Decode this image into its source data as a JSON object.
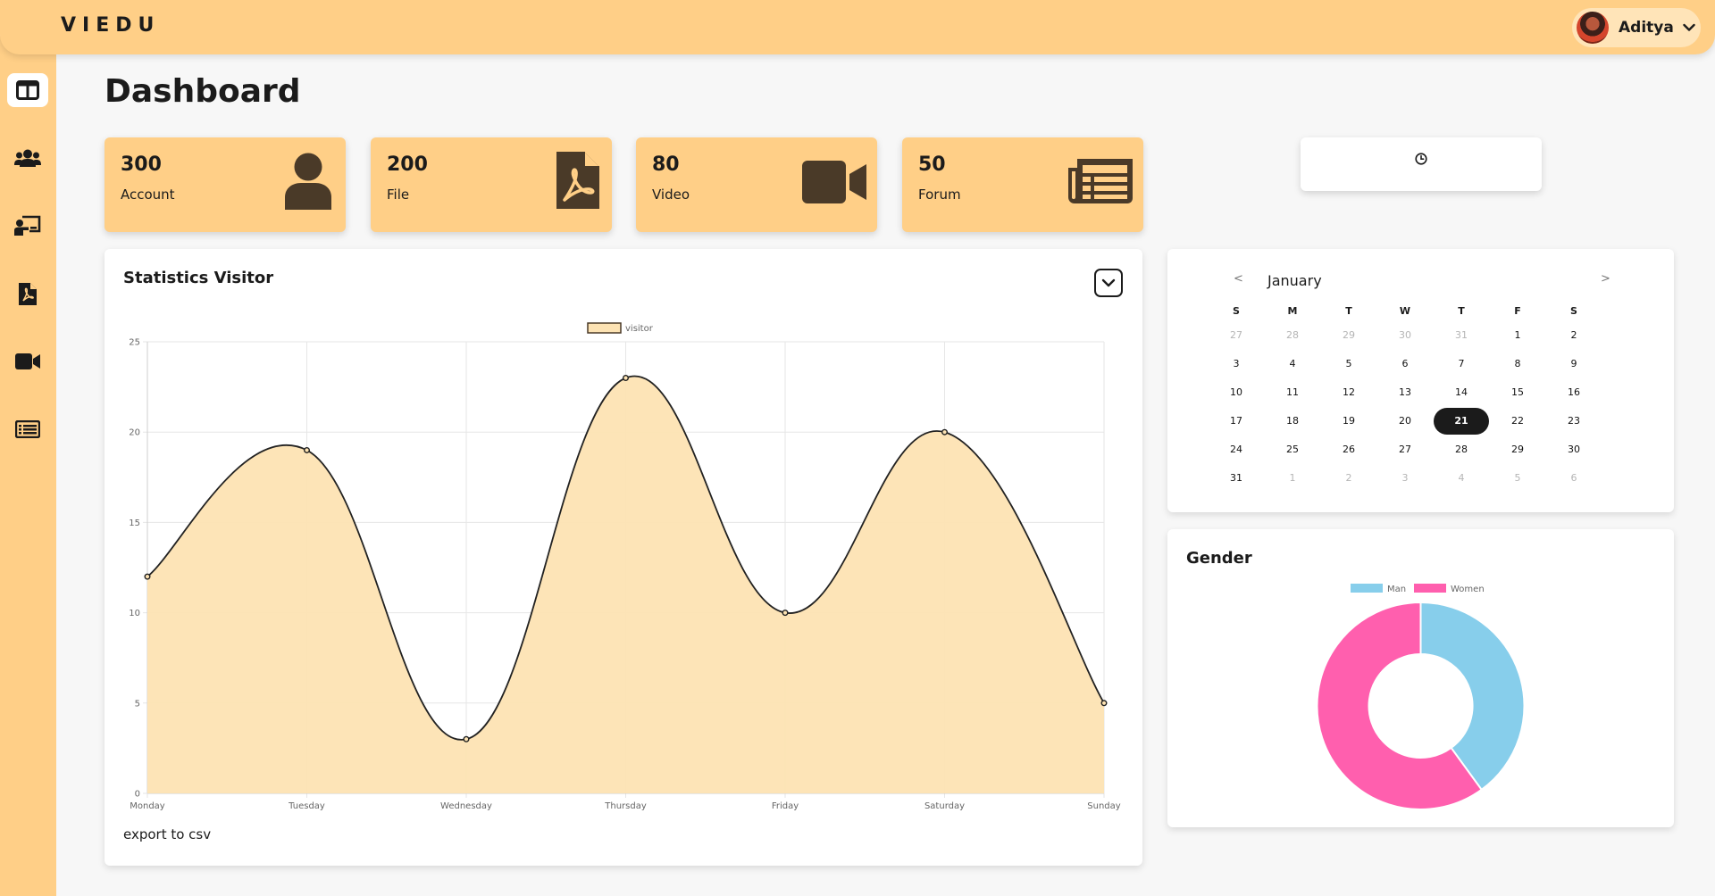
{
  "app": {
    "brand": "VIEDU"
  },
  "user": {
    "name": "Aditya"
  },
  "page": {
    "title": "Dashboard"
  },
  "sidebar": {
    "items": [
      {
        "icon": "dashboard-layout-icon",
        "active": true
      },
      {
        "icon": "users-icon",
        "active": false
      },
      {
        "icon": "presentation-icon",
        "active": false
      },
      {
        "icon": "pdf-file-icon",
        "active": false
      },
      {
        "icon": "video-camera-icon",
        "active": false
      },
      {
        "icon": "forum-list-icon",
        "active": false
      }
    ]
  },
  "stats": [
    {
      "value": "300",
      "label": "Account",
      "icon": "user-icon"
    },
    {
      "value": "200",
      "label": "File",
      "icon": "pdf-file-icon"
    },
    {
      "value": "80",
      "label": "Video",
      "icon": "video-camera-icon"
    },
    {
      "value": "50",
      "label": "Forum",
      "icon": "newspaper-icon"
    }
  ],
  "clock": {
    "icon": "clock-icon"
  },
  "visitor_panel": {
    "title": "Statistics Visitor",
    "export_label": "export to csv"
  },
  "gender_panel": {
    "title": "Gender"
  },
  "calendar": {
    "month": "January",
    "prev": "<",
    "next": ">",
    "weekdays": [
      "S",
      "M",
      "T",
      "W",
      "T",
      "F",
      "S"
    ],
    "weeks": [
      [
        "27",
        "28",
        "29",
        "30",
        "31",
        "1",
        "2"
      ],
      [
        "3",
        "4",
        "5",
        "6",
        "7",
        "8",
        "9"
      ],
      [
        "10",
        "11",
        "12",
        "13",
        "14",
        "15",
        "16"
      ],
      [
        "17",
        "18",
        "19",
        "20",
        "21",
        "22",
        "23"
      ],
      [
        "24",
        "25",
        "26",
        "27",
        "28",
        "29",
        "30"
      ],
      [
        "31",
        "1",
        "2",
        "3",
        "4",
        "5",
        "6"
      ]
    ],
    "selected": "21"
  },
  "colors": {
    "accent": "#ffcf87",
    "accent_fill": "#fde3b3",
    "dark": "#1b1b1b",
    "icon_brown": "#4a3a28",
    "man": "#87ceeb",
    "women": "#ff5fae"
  },
  "chart_data": [
    {
      "type": "area",
      "categories": [
        "Monday",
        "Tuesday",
        "Wednesday",
        "Thursday",
        "Friday",
        "Saturday",
        "Sunday"
      ],
      "series": [
        {
          "name": "visitor",
          "values": [
            12,
            19,
            3,
            23,
            10,
            20,
            5
          ]
        }
      ],
      "ylim": [
        0,
        25
      ],
      "yticks": [
        0,
        5,
        10,
        15,
        20,
        25
      ],
      "grid": true,
      "legend": "top-center"
    },
    {
      "type": "pie",
      "labels": [
        "Man",
        "Women"
      ],
      "values": [
        40,
        60
      ],
      "legend": "top-center"
    }
  ]
}
